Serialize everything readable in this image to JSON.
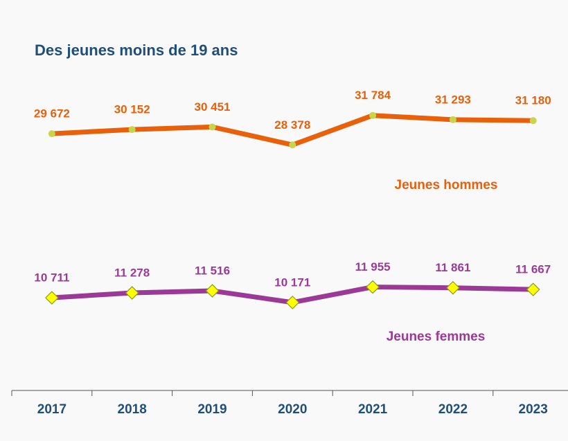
{
  "chart_data": {
    "type": "line",
    "title": "Des jeunes moins de 19 ans",
    "categories": [
      "2017",
      "2018",
      "2019",
      "2020",
      "2021",
      "2022",
      "2023"
    ],
    "ylim": [
      0,
      40000
    ],
    "series": [
      {
        "name": "Jeunes hommes",
        "color": "#e8600a",
        "marker": "circle",
        "marker_color": "#c8d44a",
        "values": [
          29672,
          30152,
          30451,
          28378,
          31784,
          31293,
          31180
        ],
        "value_labels": [
          "29 672",
          "30 152",
          "30 451",
          "28 378",
          "31 784",
          "31 293",
          "31 180"
        ]
      },
      {
        "name": "Jeunes femmes",
        "color": "#9b3a96",
        "marker": "diamond",
        "marker_color": "#ffff00",
        "values": [
          10711,
          11278,
          11516,
          10171,
          11955,
          11861,
          11667
        ],
        "value_labels": [
          "10 711",
          "11 278",
          "11 516",
          "10 171",
          "11 955",
          "11 861",
          "11 667"
        ]
      }
    ]
  }
}
